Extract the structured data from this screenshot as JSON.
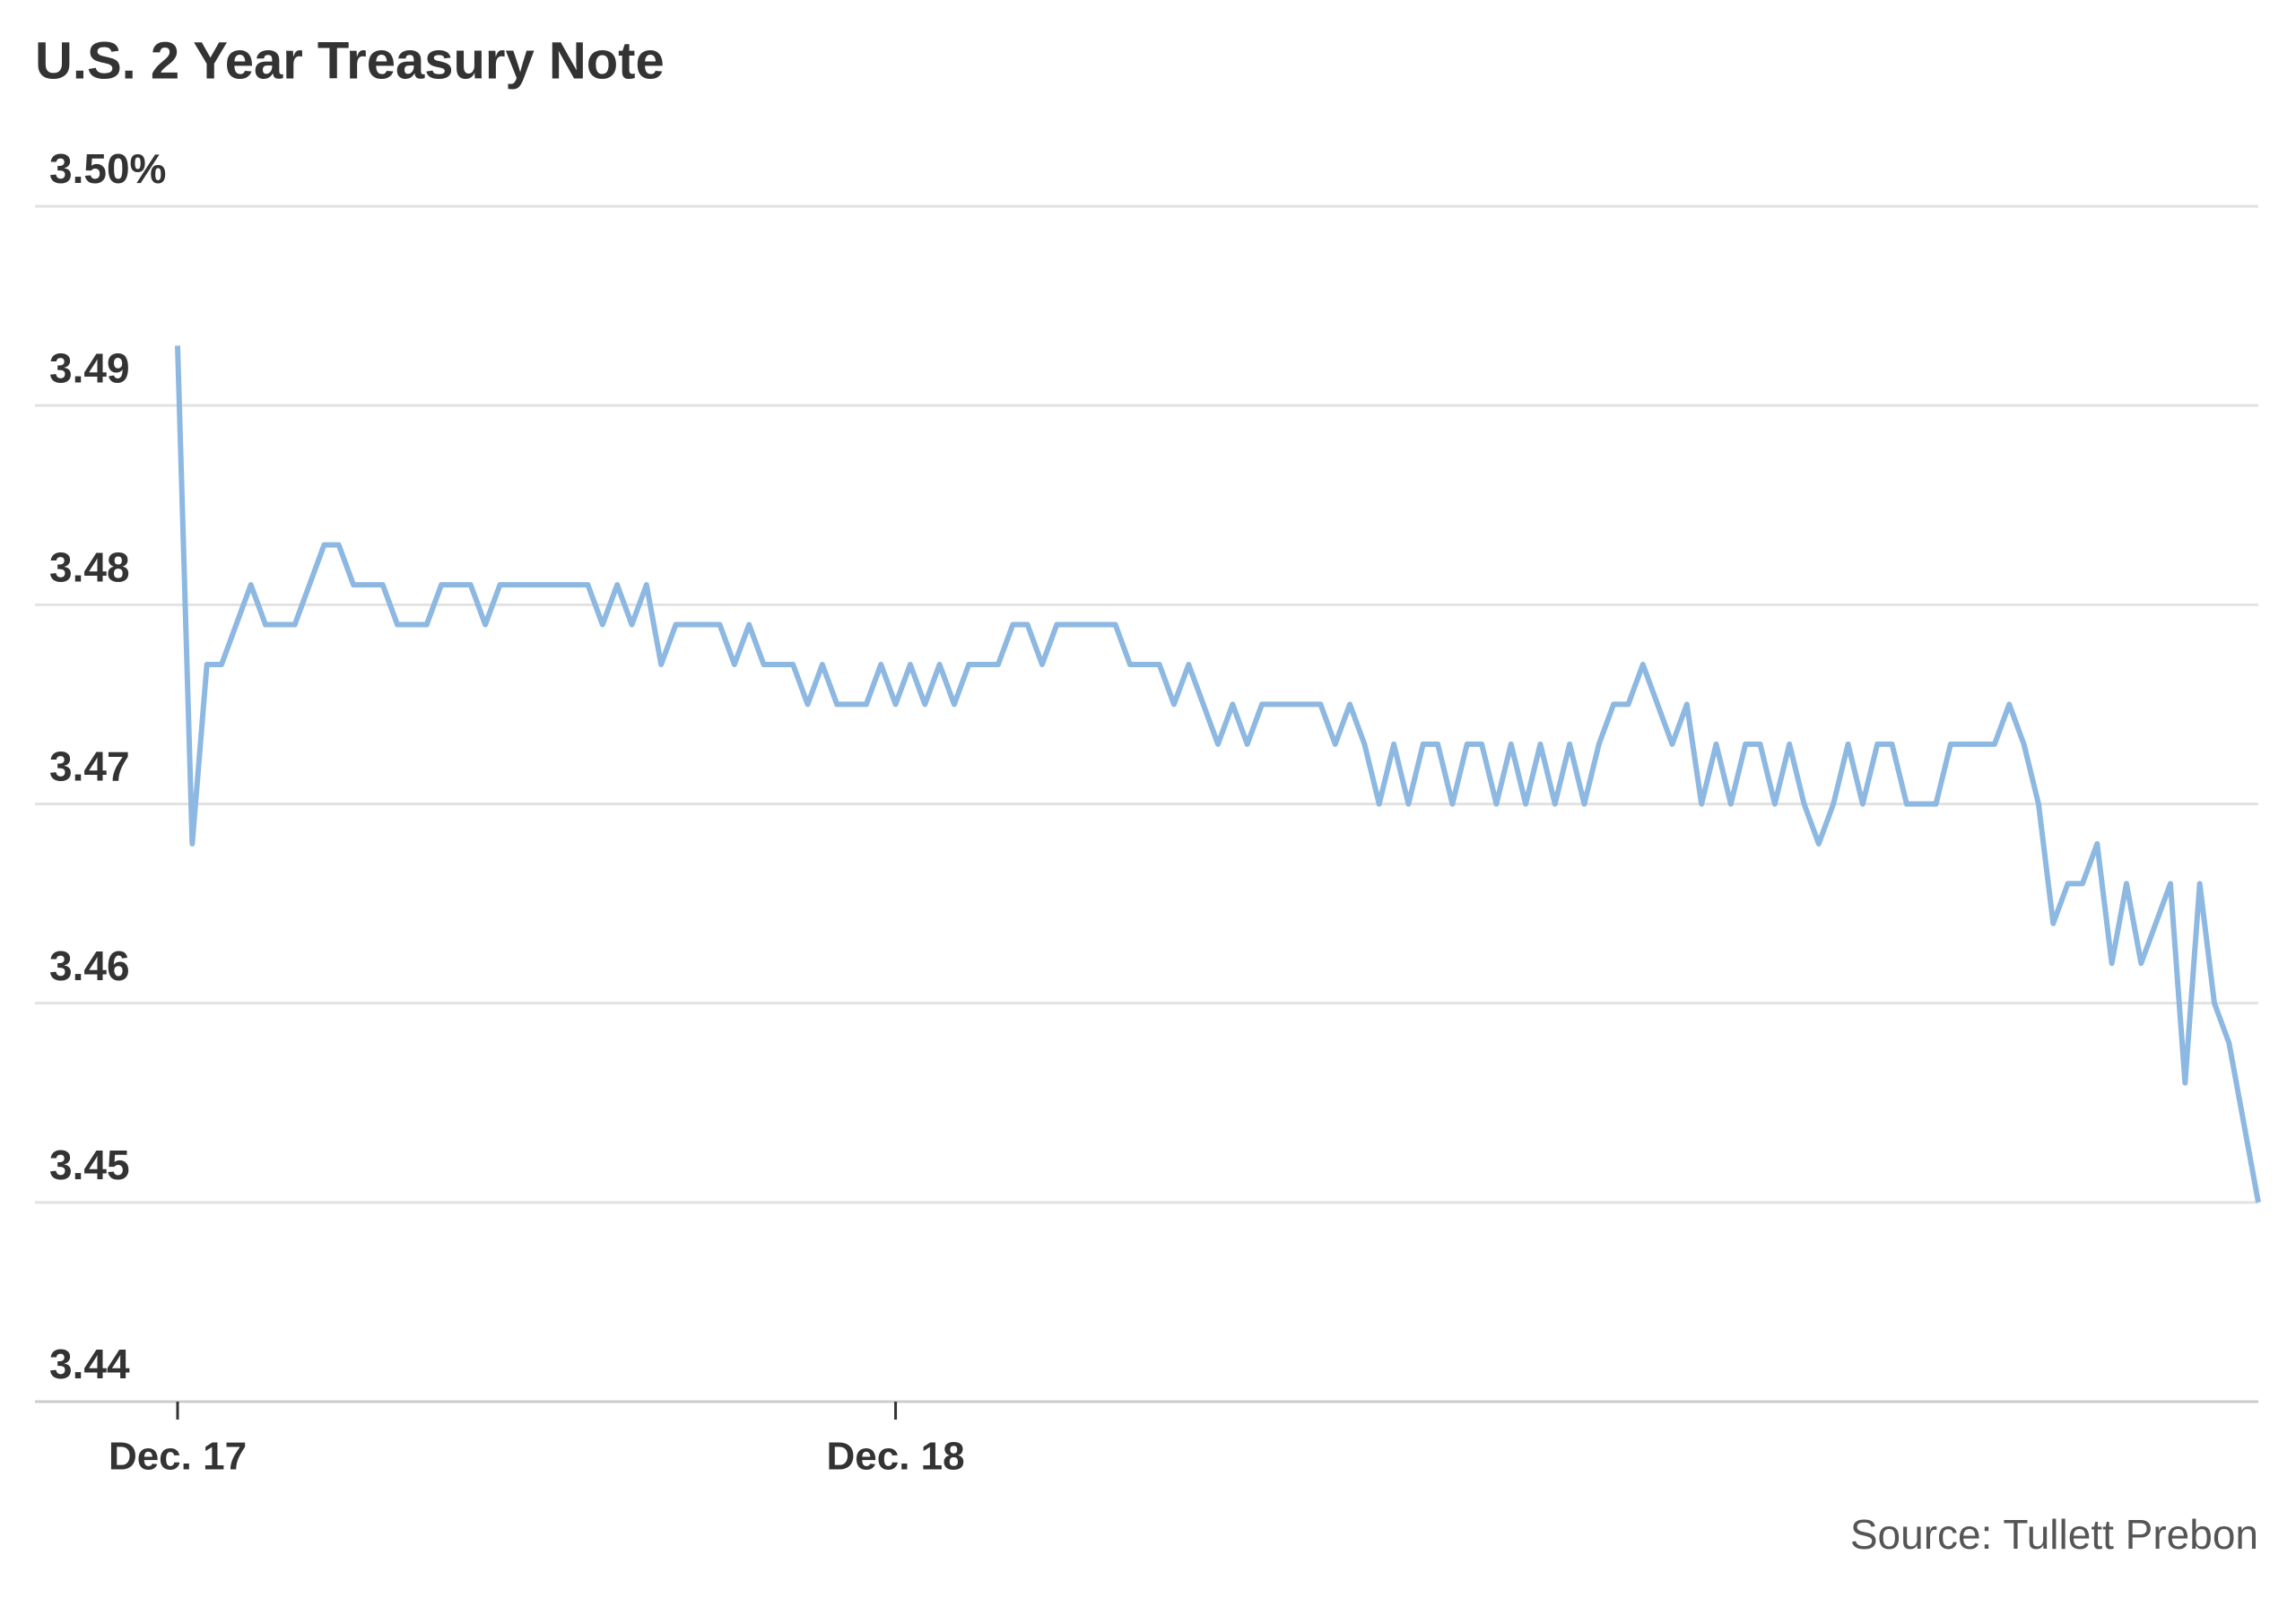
{
  "chart_data": {
    "type": "line",
    "title": "U.S. 2 Year Treasury Note",
    "source": "Source: Tullett Prebon",
    "categories": [
      "Dec. 17",
      null,
      null,
      null,
      null,
      null,
      null,
      null,
      null,
      null,
      null,
      null,
      null,
      null,
      null,
      null,
      null,
      null,
      null,
      null,
      null,
      null,
      null,
      null,
      null,
      null,
      null,
      null,
      null,
      null,
      null,
      null,
      null,
      null,
      null,
      null,
      null,
      null,
      null,
      null,
      null,
      null,
      null,
      null,
      null,
      null,
      null,
      null,
      null,
      "Dec. 18",
      null,
      null,
      null,
      null,
      null,
      null,
      null,
      null,
      null,
      null,
      null,
      null,
      null,
      null,
      null,
      null,
      null,
      null,
      null,
      null,
      null,
      null,
      null,
      null,
      null,
      null,
      null,
      null,
      null,
      null,
      null,
      null,
      null,
      null,
      null,
      null,
      null,
      null,
      null,
      null,
      null,
      null,
      null,
      null,
      null,
      null,
      null,
      null,
      null,
      null,
      null,
      null,
      null,
      null,
      null,
      null,
      null,
      null,
      null,
      null,
      null,
      null,
      null,
      null,
      null,
      null,
      null,
      null,
      null,
      null,
      null,
      null,
      null,
      null,
      null,
      null,
      null,
      null,
      null,
      null,
      null,
      null,
      null,
      null,
      null,
      null,
      null,
      null,
      null,
      null,
      null,
      null,
      null
    ],
    "values": [
      3.493,
      3.468,
      3.477,
      3.477,
      3.479,
      3.481,
      3.479,
      3.479,
      3.479,
      3.481,
      3.483,
      3.483,
      3.481,
      3.481,
      3.481,
      3.479,
      3.479,
      3.479,
      3.481,
      3.481,
      3.481,
      3.479,
      3.481,
      3.481,
      3.481,
      3.481,
      3.481,
      3.481,
      3.481,
      3.479,
      3.481,
      3.479,
      3.481,
      3.477,
      3.479,
      3.479,
      3.479,
      3.479,
      3.477,
      3.479,
      3.477,
      3.477,
      3.477,
      3.475,
      3.477,
      3.475,
      3.475,
      3.475,
      3.477,
      3.475,
      3.477,
      3.475,
      3.477,
      3.475,
      3.477,
      3.477,
      3.477,
      3.479,
      3.479,
      3.477,
      3.479,
      3.479,
      3.479,
      3.479,
      3.479,
      3.477,
      3.477,
      3.477,
      3.475,
      3.477,
      3.475,
      3.473,
      3.475,
      3.473,
      3.475,
      3.475,
      3.475,
      3.475,
      3.475,
      3.473,
      3.475,
      3.473,
      3.47,
      3.473,
      3.47,
      3.473,
      3.473,
      3.47,
      3.473,
      3.473,
      3.47,
      3.473,
      3.47,
      3.473,
      3.47,
      3.473,
      3.47,
      3.473,
      3.475,
      3.475,
      3.477,
      3.475,
      3.473,
      3.475,
      3.47,
      3.473,
      3.47,
      3.473,
      3.473,
      3.47,
      3.473,
      3.47,
      3.468,
      3.47,
      3.473,
      3.47,
      3.473,
      3.473,
      3.47,
      3.47,
      3.47,
      3.473,
      3.473,
      3.473,
      3.473,
      3.475,
      3.473,
      3.47,
      3.464,
      3.466,
      3.466,
      3.468,
      3.462,
      3.466,
      3.462,
      3.464,
      3.466,
      3.456,
      3.466,
      3.46,
      3.458,
      3.454,
      3.45
    ],
    "color": "#8db8e2",
    "ylim": [
      3.44,
      3.5
    ],
    "yticks": [
      3.44,
      3.45,
      3.46,
      3.47,
      3.48,
      3.49,
      {
        "value": 3.5,
        "label": "3.50%"
      }
    ],
    "grid": true
  }
}
